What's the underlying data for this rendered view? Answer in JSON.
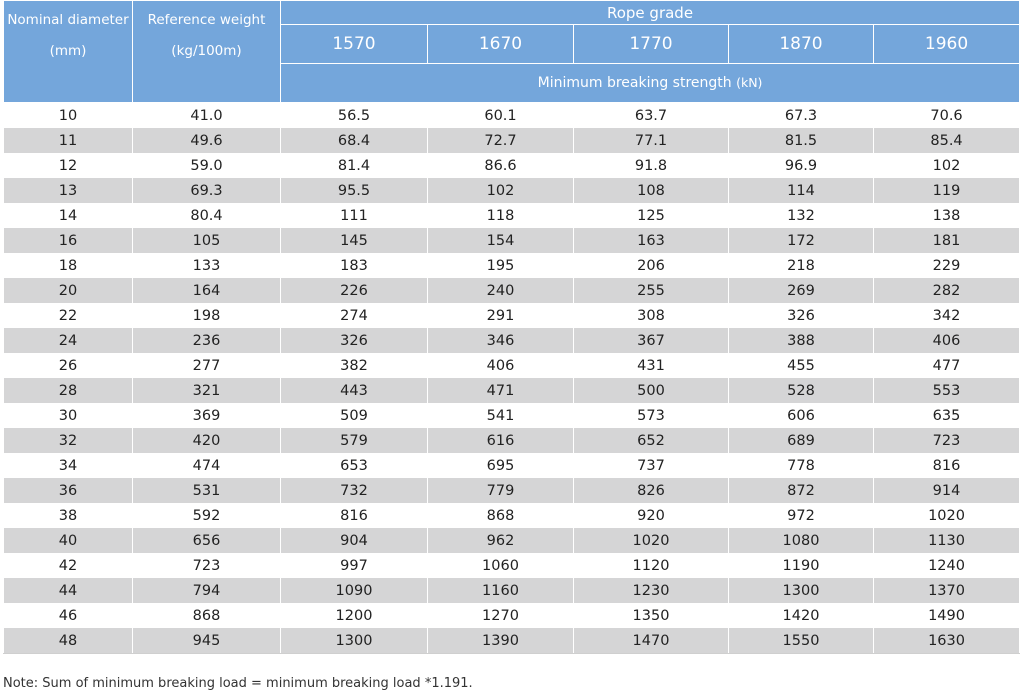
{
  "table": {
    "header": {
      "nominal_diameter": "Nominal diameter",
      "nominal_diameter_unit": "(mm)",
      "reference_weight": "Reference weight",
      "reference_weight_unit": "(kg/100m)",
      "rope_grade": "Rope grade",
      "grades": [
        "1570",
        "1670",
        "1770",
        "1870",
        "1960"
      ],
      "min_breaking_strength": "Minimum breaking strength",
      "min_breaking_strength_unit": "(kN)"
    },
    "rows": [
      [
        "10",
        "41.0",
        "56.5",
        "60.1",
        "63.7",
        "67.3",
        "70.6"
      ],
      [
        "11",
        "49.6",
        "68.4",
        "72.7",
        "77.1",
        "81.5",
        "85.4"
      ],
      [
        "12",
        "59.0",
        "81.4",
        "86.6",
        "91.8",
        "96.9",
        "102"
      ],
      [
        "13",
        "69.3",
        "95.5",
        "102",
        "108",
        "114",
        "119"
      ],
      [
        "14",
        "80.4",
        "111",
        "118",
        "125",
        "132",
        "138"
      ],
      [
        "16",
        "105",
        "145",
        "154",
        "163",
        "172",
        "181"
      ],
      [
        "18",
        "133",
        "183",
        "195",
        "206",
        "218",
        "229"
      ],
      [
        "20",
        "164",
        "226",
        "240",
        "255",
        "269",
        "282"
      ],
      [
        "22",
        "198",
        "274",
        "291",
        "308",
        "326",
        "342"
      ],
      [
        "24",
        "236",
        "326",
        "346",
        "367",
        "388",
        "406"
      ],
      [
        "26",
        "277",
        "382",
        "406",
        "431",
        "455",
        "477"
      ],
      [
        "28",
        "321",
        "443",
        "471",
        "500",
        "528",
        "553"
      ],
      [
        "30",
        "369",
        "509",
        "541",
        "573",
        "606",
        "635"
      ],
      [
        "32",
        "420",
        "579",
        "616",
        "652",
        "689",
        "723"
      ],
      [
        "34",
        "474",
        "653",
        "695",
        "737",
        "778",
        "816"
      ],
      [
        "36",
        "531",
        "732",
        "779",
        "826",
        "872",
        "914"
      ],
      [
        "38",
        "592",
        "816",
        "868",
        "920",
        "972",
        "1020"
      ],
      [
        "40",
        "656",
        "904",
        "962",
        "1020",
        "1080",
        "1130"
      ],
      [
        "42",
        "723",
        "997",
        "1060",
        "1120",
        "1190",
        "1240"
      ],
      [
        "44",
        "794",
        "1090",
        "1160",
        "1230",
        "1300",
        "1370"
      ],
      [
        "46",
        "868",
        "1200",
        "1270",
        "1350",
        "1420",
        "1490"
      ],
      [
        "48",
        "945",
        "1300",
        "1390",
        "1470",
        "1550",
        "1630"
      ]
    ]
  },
  "note": "Note: Sum of minimum breaking load = minimum breaking load *1.191."
}
